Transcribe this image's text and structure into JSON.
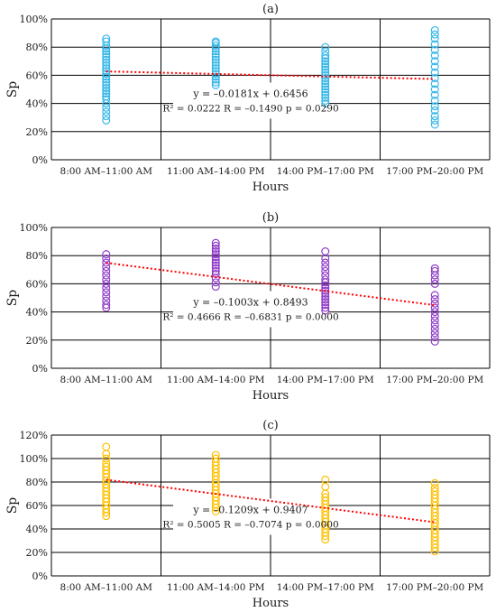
{
  "chart_data": [
    {
      "type": "scatter",
      "title": "(a)",
      "xlabel": "Hours",
      "ylabel": "Sp",
      "ylim": [
        0,
        100
      ],
      "yticks": [
        0,
        20,
        40,
        60,
        80,
        100
      ],
      "ytick_labels": [
        "0%",
        "20%",
        "40%",
        "60%",
        "80%",
        "100%"
      ],
      "categories": [
        "8:00 AM–11:00 AM",
        "11:00 AM–14:00 PM",
        "14:00 PM–17:00 PM",
        "17:00 PM–20:00 PM"
      ],
      "grid": true,
      "point_color": "#36b7e8",
      "trend_color": "#ff0000",
      "series": [
        {
          "values": [
            [
              28,
              31,
              34,
              37,
              40,
              43,
              45,
              47,
              49,
              51,
              53,
              55,
              57,
              59,
              61,
              63,
              65,
              67,
              69,
              71,
              73,
              75,
              77,
              79,
              81,
              84,
              86
            ],
            [
              53,
              55,
              57,
              59,
              61,
              63,
              65,
              67,
              69,
              71,
              73,
              75,
              77,
              79,
              81,
              83,
              84
            ],
            [
              40,
              42,
              44,
              46,
              48,
              50,
              52,
              54,
              56,
              58,
              60,
              62,
              64,
              66,
              68,
              70,
              72,
              74,
              77,
              80
            ],
            [
              25,
              28,
              31,
              35,
              38,
              42,
              46,
              50,
              54,
              58,
              62,
              66,
              70,
              74,
              78,
              82,
              86,
              89,
              92
            ]
          ]
        }
      ],
      "trendline": {
        "start": 62.75,
        "end": 57.32
      },
      "equation": "y = –0.0181x + 0.6456",
      "stats": "R² = 0.0222 R = –0.1490 p = 0.0290"
    },
    {
      "type": "scatter",
      "title": "(b)",
      "xlabel": "Hours",
      "ylabel": "Sp",
      "ylim": [
        0,
        100
      ],
      "yticks": [
        0,
        20,
        40,
        60,
        80,
        100
      ],
      "ytick_labels": [
        "0%",
        "20%",
        "40%",
        "60%",
        "80%",
        "100%"
      ],
      "categories": [
        "8:00 AM–11:00 AM",
        "11:00 AM–14:00 PM",
        "14:00 PM–17:00 PM",
        "17:00 PM–20:00 PM"
      ],
      "grid": true,
      "point_color": "#8f3dc8",
      "trend_color": "#ff0000",
      "series": [
        {
          "values": [
            [
              43,
              45,
              48,
              51,
              54,
              57,
              60,
              63,
              66,
              69,
              72,
              75,
              78,
              81
            ],
            [
              58,
              61,
              64,
              67,
              69,
              71,
              73,
              75,
              77,
              79,
              81,
              83,
              85,
              87,
              89
            ],
            [
              41,
              43,
              45,
              47,
              49,
              51,
              53,
              55,
              57,
              59,
              61,
              63,
              66,
              69,
              72,
              75,
              78,
              83
            ],
            [
              19,
              22,
              25,
              28,
              31,
              34,
              37,
              40,
              43,
              46,
              49,
              52,
              60,
              63,
              66,
              69,
              71
            ]
          ]
        }
      ],
      "trendline": {
        "start": 74.9,
        "end": 44.8
      },
      "equation": "y = –0.1003x + 0.8493",
      "stats": "R² = 0.4666 R = –0.6831 p = 0.0000"
    },
    {
      "type": "scatter",
      "title": "(c)",
      "xlabel": "Hours",
      "ylabel": "Sp",
      "ylim": [
        0,
        120
      ],
      "yticks": [
        0,
        20,
        40,
        60,
        80,
        100,
        120
      ],
      "ytick_labels": [
        "0%",
        "20%",
        "40%",
        "60%",
        "80%",
        "100%",
        "120%"
      ],
      "categories": [
        "8:00 AM–11:00 AM",
        "11:00 AM–14:00 PM",
        "14:00 PM–17:00 PM",
        "17:00 PM–20:00 PM"
      ],
      "grid": true,
      "point_color": "#ffc000",
      "trend_color": "#ff0000",
      "series": [
        {
          "values": [
            [
              51,
              54,
              57,
              60,
              63,
              66,
              69,
              72,
              75,
              78,
              81,
              84,
              87,
              90,
              93,
              96,
              100,
              104,
              110
            ],
            [
              55,
              58,
              61,
              64,
              67,
              70,
              73,
              76,
              79,
              82,
              85,
              88,
              91,
              94,
              97,
              100,
              103
            ],
            [
              31,
              34,
              37,
              40,
              43,
              46,
              49,
              52,
              55,
              58,
              61,
              64,
              67,
              70,
              76,
              82
            ],
            [
              21,
              24,
              27,
              30,
              33,
              36,
              39,
              42,
              45,
              48,
              51,
              54,
              57,
              60,
              63,
              66,
              69,
              72,
              75,
              79
            ]
          ]
        }
      ],
      "trendline": {
        "start": 81.98,
        "end": 45.71
      },
      "equation": "y = –0.1209x + 0.9407",
      "stats": "R² = 0.5005 R = –0.7074 p = 0.0000"
    }
  ]
}
